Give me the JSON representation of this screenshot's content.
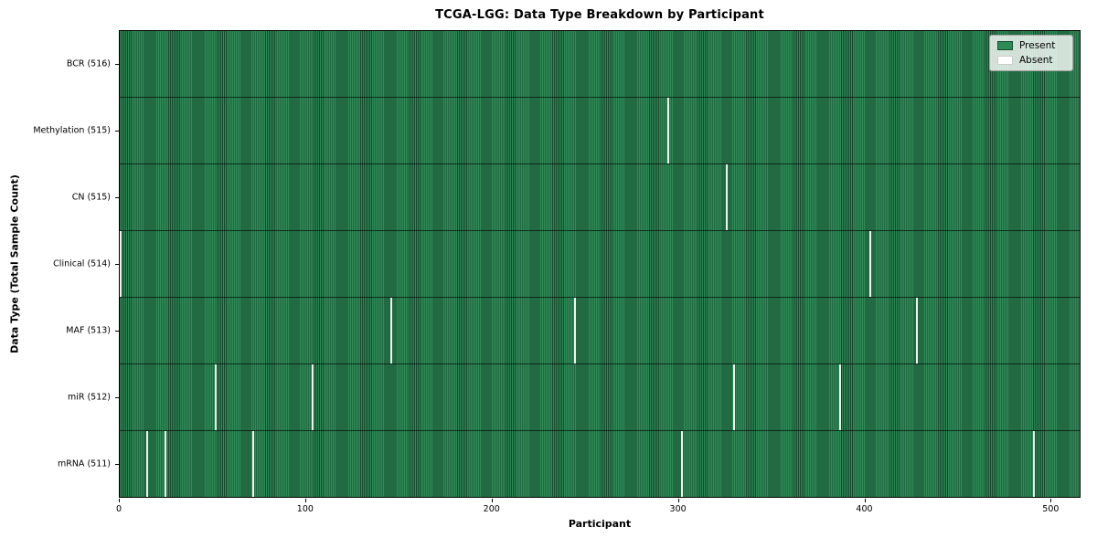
{
  "title": "TCGA-LGG: Data Type Breakdown by Participant",
  "chart_data": {
    "type": "heatmap",
    "title": "TCGA-LGG: Data Type Breakdown by Participant",
    "xlabel": "Participant",
    "ylabel": "Data Type (Total Sample Count)",
    "x_range": [
      0,
      516
    ],
    "x_ticks": [
      0,
      100,
      200,
      300,
      400,
      500
    ],
    "grid": false,
    "legend_position": "upper right",
    "legend": [
      {
        "label": "Present",
        "color": "#2e8b57"
      },
      {
        "label": "Absent",
        "color": "#ffffff"
      }
    ],
    "colors": {
      "present_fill": "#2e8b57",
      "present_edge": "#17482c",
      "absent_fill": "#f1f1ef"
    },
    "rows": [
      {
        "label": "BCR (516)",
        "data_type": "BCR",
        "total_samples": 516,
        "absent_participants": []
      },
      {
        "label": "Methylation (515)",
        "data_type": "Methylation",
        "total_samples": 515,
        "absent_participants": [
          294
        ]
      },
      {
        "label": "CN (515)",
        "data_type": "CN",
        "total_samples": 515,
        "absent_participants": [
          325
        ]
      },
      {
        "label": "Clinical (514)",
        "data_type": "Clinical",
        "total_samples": 514,
        "absent_participants": [
          0,
          402
        ]
      },
      {
        "label": "MAF (513)",
        "data_type": "MAF",
        "total_samples": 513,
        "absent_participants": [
          145,
          244,
          427
        ]
      },
      {
        "label": "miR (512)",
        "data_type": "miR",
        "total_samples": 512,
        "absent_participants": [
          51,
          103,
          329,
          386
        ]
      },
      {
        "label": "mRNA (511)",
        "data_type": "mRNA",
        "total_samples": 511,
        "absent_participants": [
          14,
          24,
          71,
          301,
          490
        ]
      }
    ]
  }
}
